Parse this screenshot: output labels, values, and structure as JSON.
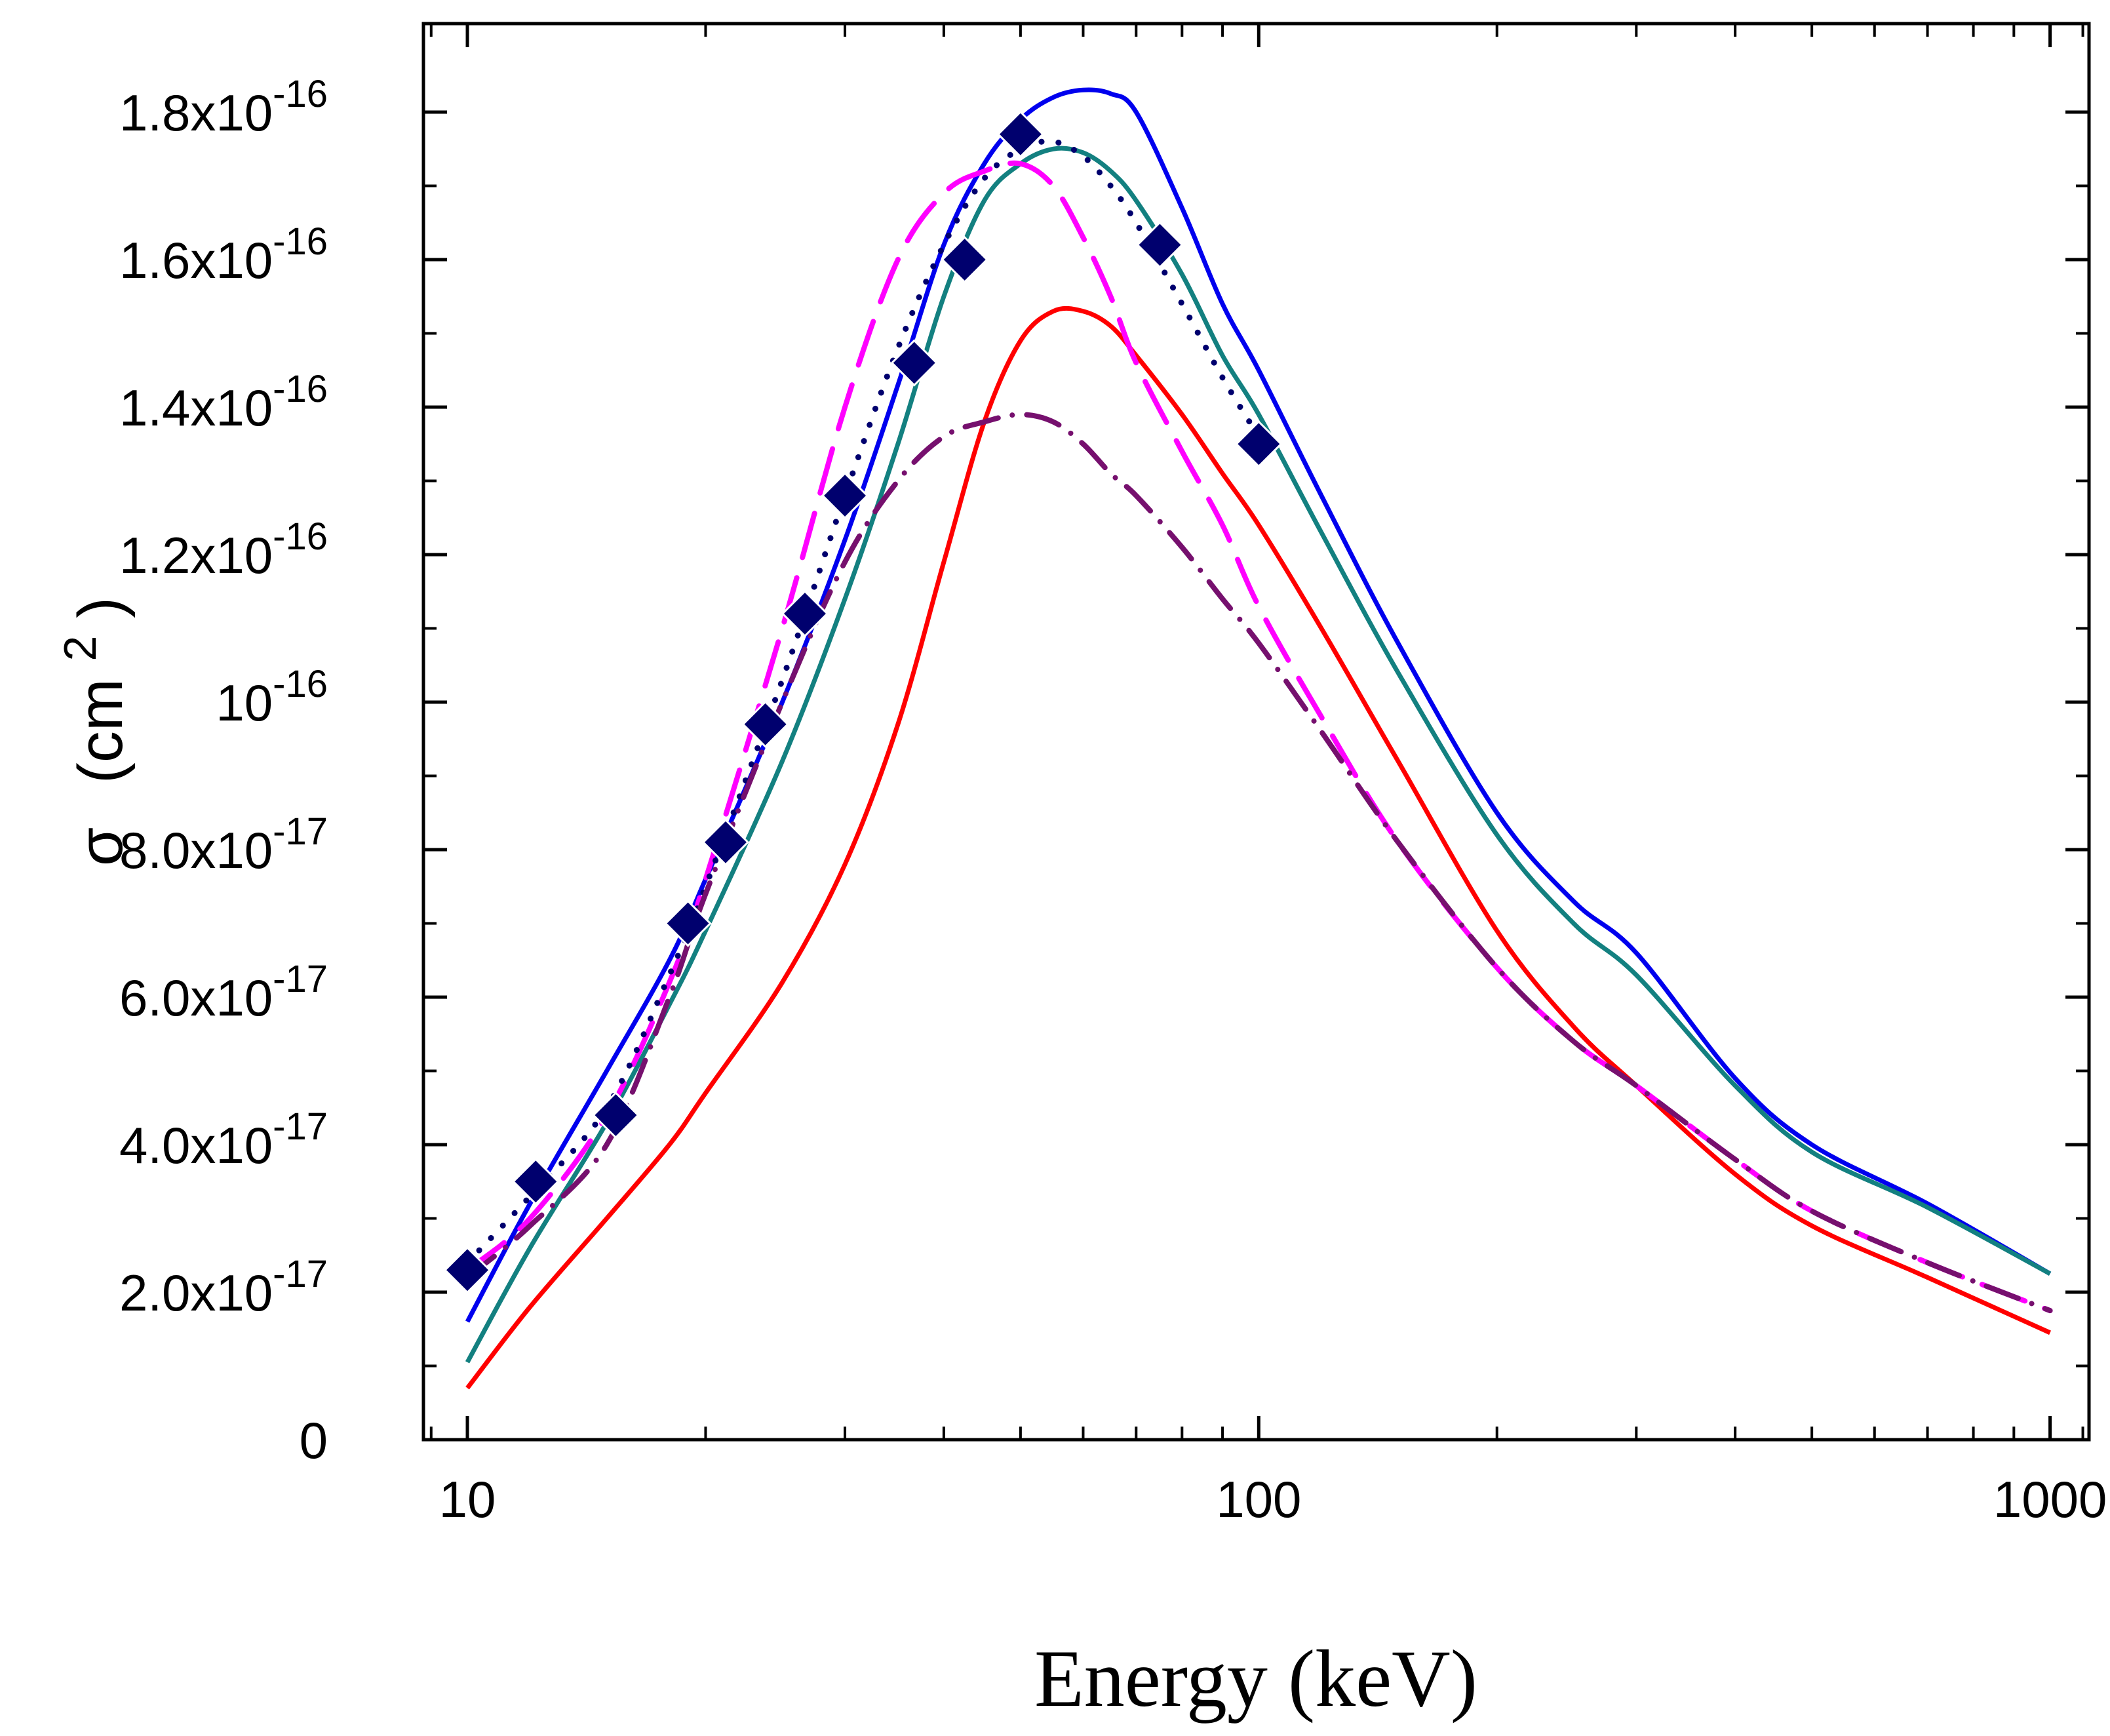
{
  "chart_data": {
    "type": "line",
    "title": "",
    "xlabel": "Energy (keV)",
    "ylabel": {
      "symbol": "σ",
      "unit": "(cm",
      "power": "2",
      "close": ")"
    },
    "xscale": "log",
    "xlim": [
      8.8,
      1120
    ],
    "ylim": [
      0,
      1.92e-16
    ],
    "grid": false,
    "legend": "none",
    "x_ticks": [
      {
        "value": 10,
        "label": "10"
      },
      {
        "value": 100,
        "label": "100"
      },
      {
        "value": 1000,
        "label": "1000"
      }
    ],
    "y_ticks": [
      {
        "value": 0,
        "mantissa": "0",
        "exp": ""
      },
      {
        "value": 2e-17,
        "mantissa": "2.0x10",
        "exp": "-17"
      },
      {
        "value": 4e-17,
        "mantissa": "4.0x10",
        "exp": "-17"
      },
      {
        "value": 6e-17,
        "mantissa": "6.0x10",
        "exp": "-17"
      },
      {
        "value": 8e-17,
        "mantissa": "8.0x10",
        "exp": "-17"
      },
      {
        "value": 1e-16,
        "mantissa": "10",
        "exp": "-16"
      },
      {
        "value": 1.2e-16,
        "mantissa": "1.2x10",
        "exp": "-16"
      },
      {
        "value": 1.4e-16,
        "mantissa": "1.4x10",
        "exp": "-16"
      },
      {
        "value": 1.6e-16,
        "mantissa": "1.6x10",
        "exp": "-16"
      },
      {
        "value": 1.8e-16,
        "mantissa": "1.8x10",
        "exp": "-16"
      }
    ],
    "series": [
      {
        "style": "solid",
        "color": "#0000ee",
        "width": 7,
        "x": [
          10,
          12,
          15,
          18,
          20,
          25,
          30,
          35,
          40,
          45,
          50,
          55,
          60,
          65,
          70,
          80,
          90,
          100,
          120,
          150,
          200,
          250,
          300,
          400,
          500,
          700,
          1000
        ],
        "y": [
          1.6e-17,
          3.2e-17,
          5e-17,
          6.5e-17,
          7.6e-17,
          1e-16,
          1.22e-16,
          1.43e-16,
          1.62e-16,
          1.73e-16,
          1.79e-16,
          1.82e-16,
          1.83e-16,
          1.825e-16,
          1.8e-16,
          1.67e-16,
          1.54e-16,
          1.45e-16,
          1.28e-16,
          1.08e-16,
          8.5e-17,
          7.3e-17,
          6.6e-17,
          4.9e-17,
          4e-17,
          3.2e-17,
          2.25e-17
        ]
      },
      {
        "style": "solid",
        "color": "#138080",
        "width": 7,
        "x": [
          10,
          12,
          15,
          18,
          20,
          25,
          30,
          35,
          40,
          45,
          50,
          55,
          60,
          65,
          70,
          80,
          90,
          100,
          120,
          150,
          200,
          250,
          300,
          400,
          500,
          700,
          1000
        ],
        "y": [
          1.05e-17,
          2.6e-17,
          4.3e-17,
          5.9e-17,
          6.9e-17,
          9.2e-17,
          1.14e-16,
          1.35e-16,
          1.55e-16,
          1.68e-16,
          1.73e-16,
          1.75e-16,
          1.745e-16,
          1.72e-16,
          1.68e-16,
          1.58e-16,
          1.47e-16,
          1.39e-16,
          1.23e-16,
          1.04e-16,
          8.2e-17,
          7e-17,
          6.3e-17,
          4.8e-17,
          3.9e-17,
          3.15e-17,
          2.25e-17
        ]
      },
      {
        "style": "solid",
        "color": "#ff0000",
        "width": 7,
        "x": [
          10,
          12,
          15,
          18,
          20,
          25,
          30,
          35,
          40,
          45,
          50,
          55,
          60,
          65,
          70,
          80,
          90,
          100,
          120,
          150,
          200,
          250,
          300,
          400,
          500,
          700,
          1000
        ],
        "y": [
          7e-18,
          1.8e-17,
          3e-17,
          4e-17,
          4.7e-17,
          6.2e-17,
          7.8e-17,
          9.7e-17,
          1.19e-16,
          1.38e-16,
          1.49e-16,
          1.53e-16,
          1.53e-16,
          1.51e-16,
          1.47e-16,
          1.39e-16,
          1.31e-16,
          1.24e-16,
          1.1e-16,
          9.2e-17,
          6.9e-17,
          5.6e-17,
          4.8e-17,
          3.6e-17,
          2.9e-17,
          2.2e-17,
          1.45e-17
        ]
      },
      {
        "style": "dashed",
        "color": "#ff00ff",
        "width": 8,
        "x": [
          10,
          12,
          15,
          18,
          20,
          25,
          30,
          35,
          40,
          45,
          50,
          55,
          60,
          65,
          70,
          80,
          90,
          100,
          120,
          150,
          200,
          250,
          300,
          400,
          500,
          700,
          1000
        ],
        "y": [
          2.3e-17,
          3e-17,
          4.4e-17,
          6.2e-17,
          7.6e-17,
          1.1e-16,
          1.4e-16,
          1.6e-16,
          1.69e-16,
          1.72e-16,
          1.73e-16,
          1.7e-16,
          1.63e-16,
          1.55e-16,
          1.46e-16,
          1.34e-16,
          1.24e-16,
          1.13e-16,
          9.8e-17,
          8.1e-17,
          6.4e-17,
          5.4e-17,
          4.8e-17,
          3.8e-17,
          3.1e-17,
          2.4e-17,
          1.75e-17
        ]
      },
      {
        "style": "dotted",
        "color": "#00006e",
        "width": 9,
        "x": [
          10,
          12,
          15,
          18,
          20,
          25,
          30,
          35,
          40,
          45,
          50,
          55,
          60,
          65,
          70,
          80,
          90,
          100
        ],
        "y": [
          2.4e-17,
          3.3e-17,
          4.5e-17,
          6.3e-17,
          7.5e-17,
          1.03e-16,
          1.28e-16,
          1.48e-16,
          1.62e-16,
          1.71e-16,
          1.75e-16,
          1.76e-16,
          1.74e-16,
          1.7e-16,
          1.65e-16,
          1.54e-16,
          1.44e-16,
          1.36e-16
        ]
      },
      {
        "style": "dashdot",
        "color": "#76106e",
        "width": 8,
        "x": [
          10,
          12,
          15,
          18,
          20,
          25,
          30,
          35,
          40,
          45,
          50,
          55,
          60,
          65,
          70,
          80,
          90,
          100,
          120,
          150,
          200,
          250,
          300,
          400,
          500,
          700,
          1000
        ],
        "y": [
          2.2e-17,
          2.9e-17,
          4e-17,
          6e-17,
          7.4e-17,
          1e-16,
          1.19e-16,
          1.3e-16,
          1.36e-16,
          1.38e-16,
          1.39e-16,
          1.38e-16,
          1.35e-16,
          1.31e-16,
          1.28e-16,
          1.21e-16,
          1.14e-16,
          1.08e-16,
          9.6e-17,
          8.1e-17,
          6.4e-17,
          5.4e-17,
          4.8e-17,
          3.8e-17,
          3.1e-17,
          2.4e-17,
          1.75e-17
        ]
      },
      {
        "style": "markers",
        "marker": "diamond",
        "color": "#00006e",
        "x": [
          10,
          12.2,
          15.4,
          19,
          21.2,
          23.8,
          26.7,
          30,
          36.7,
          42.5,
          50,
          75,
          100
        ],
        "y": [
          2.3e-17,
          3.5e-17,
          4.4e-17,
          7e-17,
          8.1e-17,
          9.7e-17,
          1.12e-16,
          1.28e-16,
          1.46e-16,
          1.6e-16,
          1.77e-16,
          1.62e-16,
          1.35e-16
        ]
      }
    ]
  }
}
